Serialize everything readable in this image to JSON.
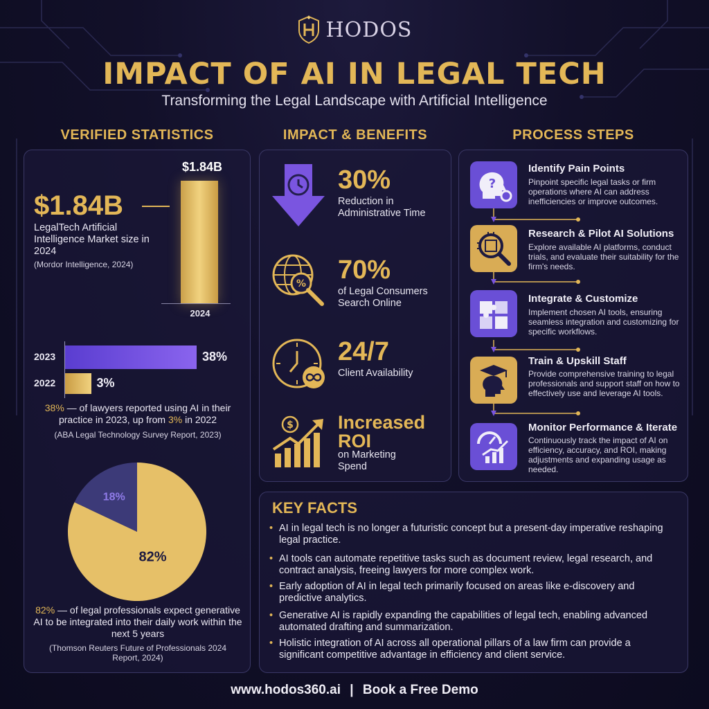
{
  "brand": {
    "name": "HODOS"
  },
  "header": {
    "title": "IMPACT OF AI IN LEGAL TECH",
    "subtitle": "Transforming the Legal Landscape with Artificial Intelligence"
  },
  "columns": {
    "stats": "VERIFIED STATISTICS",
    "benefits": "IMPACT & BENEFITS",
    "process": "PROCESS STEPS"
  },
  "stats": {
    "market": {
      "value": "$1.84B",
      "label": "LegalTech Artificial Intelligence Market size in 2024",
      "source": "(Mordor Intelligence, 2024)",
      "bar_value_label": "$1.84B",
      "bar_year": "2024"
    },
    "adoption": {
      "rows": [
        {
          "year": "2023",
          "value": 38,
          "label": "38%"
        },
        {
          "year": "2022",
          "value": 3,
          "label": "3%"
        }
      ],
      "text_highlight": "38%",
      "text_mid": " — of lawyers reported using AI in their practice in 2023, up from ",
      "text_highlight2": "3%",
      "text_end": " in 2022",
      "source": "(ABA Legal Technology Survey Report, 2023)"
    },
    "expectation": {
      "slices": [
        {
          "label": "82%",
          "value": 82,
          "color": "#e6c068"
        },
        {
          "label": "18%",
          "value": 18,
          "color": "#3c3a78"
        }
      ],
      "text_highlight": "82%",
      "text_rest": " — of legal professionals expect generative AI to be integrated into their daily work within the next 5 years",
      "source": "(Thomson Reuters Future of Professionals 2024 Report, 2024)"
    }
  },
  "chart_data": [
    {
      "type": "bar",
      "categories": [
        "2024"
      ],
      "values": [
        1.84
      ],
      "title": "",
      "xlabel": "",
      "ylabel": "",
      "data_labels": [
        "$1.84B"
      ]
    },
    {
      "type": "bar",
      "orientation": "horizontal",
      "categories": [
        "2023",
        "2022"
      ],
      "values": [
        38,
        3
      ],
      "data_labels": [
        "38%",
        "3%"
      ],
      "xlim": [
        0,
        38
      ]
    },
    {
      "type": "pie",
      "categories": [
        "",
        ""
      ],
      "values": [
        82,
        18
      ],
      "data_labels": [
        "82%",
        "18%"
      ]
    }
  ],
  "benefits": [
    {
      "icon": "down-arrow-clock-icon",
      "value": "30%",
      "text": "Reduction in Administrative Time"
    },
    {
      "icon": "globe-search-icon",
      "value": "70%",
      "text": "of Legal Consumers Search Online"
    },
    {
      "icon": "clock-infinity-icon",
      "value": "24/7",
      "text": "Client Availability"
    },
    {
      "icon": "growth-chart-icon",
      "value": "Increased ROI",
      "text": "on Marketing Spend"
    }
  ],
  "steps": [
    {
      "icon": "question-gear-head-icon",
      "title": "Identify Pain Points",
      "desc": "Pinpoint specific legal tasks or firm operations where AI can address inefficiencies or improve outcomes.",
      "color": "#6a4fd6"
    },
    {
      "icon": "chip-magnifier-icon",
      "title": "Research & Pilot AI Solutions",
      "desc": "Explore available AI platforms, conduct trials, and evaluate their suitability for the firm's needs.",
      "color": "#d9ac55"
    },
    {
      "icon": "puzzle-icon",
      "title": "Integrate & Customize",
      "desc": "Implement chosen AI tools, ensuring seamless integration and customizing for specific workflows.",
      "color": "#6a4fd6"
    },
    {
      "icon": "graduation-head-icon",
      "title": "Train & Upskill Staff",
      "desc": "Provide comprehensive training to legal professionals and support staff on how to effectively use and leverage AI tools.",
      "color": "#d9ac55"
    },
    {
      "icon": "dashboard-chart-icon",
      "title": "Monitor Performance & Iterate",
      "desc": "Continuously track the impact of AI on efficiency, accuracy, and ROI, making adjustments and expanding usage as needed.",
      "color": "#6a4fd6"
    }
  ],
  "key_facts": {
    "title": "KEY FACTS",
    "items": [
      "AI in legal tech is no longer a futuristic concept but a present-day imperative reshaping legal practice.",
      "AI tools can automate repetitive tasks such as document review, legal research, and contract analysis, freeing lawyers for more complex work.",
      "Early adoption of AI in legal tech primarily focused on areas like e-discovery and predictive analytics.",
      "Generative AI is rapidly expanding the capabilities of legal tech, enabling advanced automated drafting and summarization.",
      "Holistic integration of AI across all operational pillars of a law firm can provide a significant competitive advantage in efficiency and client service."
    ]
  },
  "footer": {
    "url": "www.hodos360.ai",
    "separator": "|",
    "cta": "Book a Free Demo"
  },
  "colors": {
    "gold": "#e3b757",
    "purple": "#6a4fd6",
    "background": "#121029"
  }
}
